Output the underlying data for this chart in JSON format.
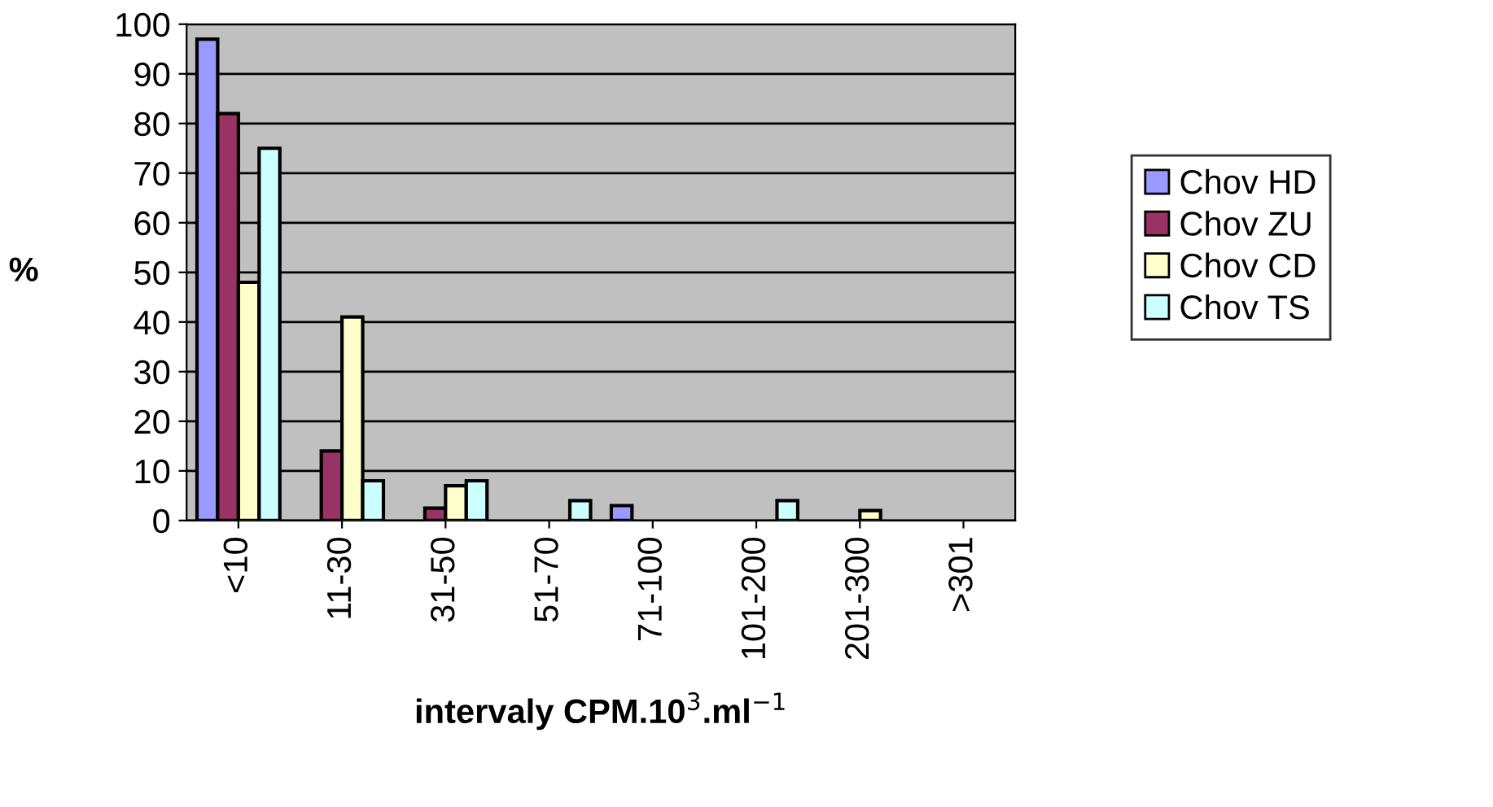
{
  "chart_data": {
    "type": "bar",
    "xlabel": "intervaly CPM.10$^{3}$.ml$^{−1}$",
    "ylabel": "%",
    "categories": [
      "<10",
      "11-30",
      "31-50",
      "51-70",
      "71-100",
      "101-200",
      "201-300",
      ">301"
    ],
    "series": [
      {
        "name": "Chov HD",
        "color": "#9999ff",
        "values": [
          97,
          0,
          0,
          0,
          3,
          0,
          0,
          0
        ]
      },
      {
        "name": "Chov ZU",
        "color": "#993366",
        "values": [
          82,
          14,
          2.5,
          0,
          0,
          0,
          0,
          0
        ]
      },
      {
        "name": "Chov CD",
        "color": "#ffffcc",
        "values": [
          48,
          41,
          7,
          0,
          0,
          0,
          2,
          0
        ]
      },
      {
        "name": "Chov TS",
        "color": "#ccffff",
        "values": [
          75,
          8,
          8,
          4,
          0,
          4,
          0,
          0
        ]
      }
    ],
    "ylim": [
      0,
      100
    ],
    "yticks": [
      0,
      10,
      20,
      30,
      40,
      50,
      60,
      70,
      80,
      90,
      100
    ],
    "grid": "y",
    "legend": "right"
  }
}
